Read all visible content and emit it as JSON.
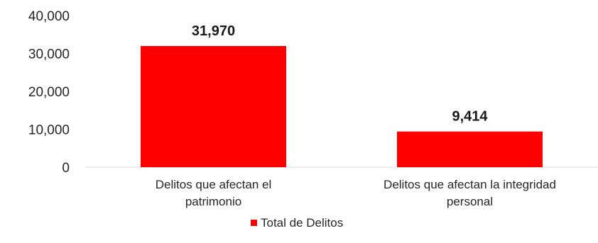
{
  "chart_data": {
    "type": "bar",
    "categories": [
      "Delitos que afectan el patrimonio",
      "Delitos que afectan la integridad personal"
    ],
    "category_lines": [
      [
        "Delitos que afectan el",
        "patrimonio"
      ],
      [
        "Delitos que afectan la integridad",
        "personal"
      ]
    ],
    "series": [
      {
        "name": "Total de Delitos",
        "values": [
          31970,
          9414
        ],
        "color": "#ff0000"
      }
    ],
    "data_labels": [
      "31,970",
      "9,414"
    ],
    "yticks": [
      0,
      10000,
      20000,
      30000,
      40000
    ],
    "ytick_labels": [
      "0",
      "10,000",
      "20,000",
      "30,000",
      "40,000"
    ],
    "ylim": [
      0,
      40000
    ],
    "grid": false,
    "legend_position": "bottom",
    "title": "",
    "xlabel": "",
    "ylabel": ""
  }
}
